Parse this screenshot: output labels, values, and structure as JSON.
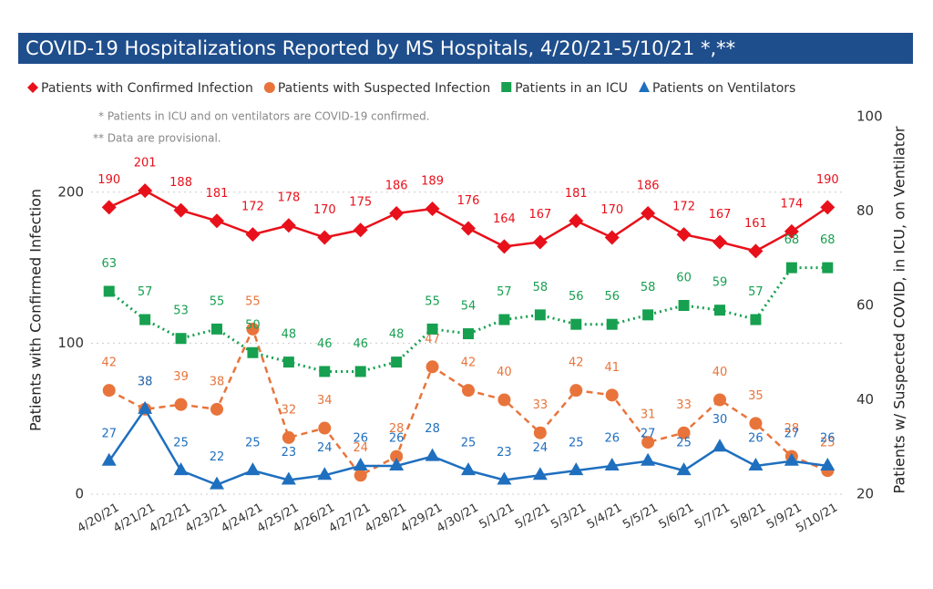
{
  "chart_data": {
    "type": "line",
    "title": "COVID-19 Hospitalizations Reported by MS Hospitals, 4/20/21-5/10/21 *,**",
    "notes": [
      "* Patients in ICU and on ventilators are COVID-19 confirmed.",
      "** Data are provisional."
    ],
    "y_label": "Patients with Confirmed Infection",
    "y2_label": "Patients w/ Suspected COVID, in ICU, on Ventilator",
    "categories": [
      "4/20/21",
      "4/21/21",
      "4/22/21",
      "4/23/21",
      "4/24/21",
      "4/25/21",
      "4/26/21",
      "4/27/21",
      "4/28/21",
      "4/29/21",
      "4/30/21",
      "5/1/21",
      "5/2/21",
      "5/3/21",
      "5/4/21",
      "5/5/21",
      "5/6/21",
      "5/7/21",
      "5/8/21",
      "5/9/21",
      "5/10/21"
    ],
    "ylim": [
      0,
      250
    ],
    "yticks": [
      0,
      100,
      200
    ],
    "y2lim": [
      20,
      100
    ],
    "y2ticks": [
      20,
      40,
      60,
      80,
      100
    ],
    "grid": true,
    "series": [
      {
        "name": "Patients with Confirmed Infection",
        "color": "#e8101a",
        "marker": "diamond",
        "dash": "solid",
        "values": [
          190,
          201,
          188,
          181,
          172,
          178,
          170,
          175,
          186,
          189,
          176,
          164,
          167,
          181,
          170,
          186,
          172,
          167,
          161,
          174,
          190
        ]
      },
      {
        "name": "Patients with Suspected Infection",
        "color": "#e8743b",
        "marker": "circle",
        "dash": "dashed",
        "axis": "y2",
        "values": [
          42,
          38,
          39,
          38,
          55,
          32,
          34,
          24,
          28,
          47,
          42,
          40,
          33,
          42,
          41,
          31,
          33,
          40,
          35,
          28,
          25
        ]
      },
      {
        "name": "Patients in an ICU",
        "color": "#17a050",
        "marker": "square",
        "dash": "dotted",
        "axis": "y2",
        "values": [
          63,
          57,
          53,
          55,
          50,
          48,
          46,
          46,
          48,
          55,
          54,
          57,
          58,
          56,
          56,
          58,
          60,
          59,
          57,
          68,
          68
        ]
      },
      {
        "name": "Patients on Ventilators",
        "color": "#1f6fbf",
        "marker": "triangle",
        "dash": "solid",
        "axis": "y2",
        "values": [
          27,
          38,
          25,
          22,
          25,
          23,
          24,
          26,
          26,
          28,
          25,
          23,
          24,
          25,
          26,
          27,
          25,
          30,
          26,
          27,
          26
        ]
      }
    ]
  }
}
